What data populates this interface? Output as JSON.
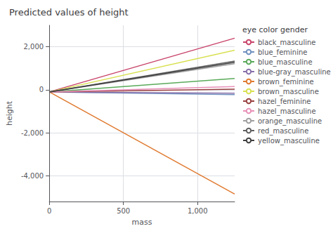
{
  "chart_data": {
    "type": "line",
    "title": "Predicted values of height",
    "xlabel": "mass",
    "ylabel": "height",
    "x": [
      0,
      1250
    ],
    "series": [
      {
        "name": "black_masculine",
        "color": "#c9446a",
        "values": [
          -100,
          2400
        ]
      },
      {
        "name": "blue_feminine",
        "color": "#7090c0",
        "values": [
          -100,
          -225
        ]
      },
      {
        "name": "blue_masculine",
        "color": "#5aaa5a",
        "values": [
          -100,
          525
        ]
      },
      {
        "name": "blue-gray_masculine",
        "color": "#8870aa",
        "values": [
          -100,
          -162.5
        ]
      },
      {
        "name": "brown_feminine",
        "color": "#e07a30",
        "values": [
          -100,
          -4850
        ]
      },
      {
        "name": "brown_masculine",
        "color": "#d8e050",
        "values": [
          -100,
          1837.5
        ]
      },
      {
        "name": "hazel_feminine",
        "color": "#994040",
        "values": [
          -100,
          25
        ]
      },
      {
        "name": "hazel_masculine",
        "color": "#e890b8",
        "values": [
          -100,
          150
        ]
      },
      {
        "name": "orange_masculine",
        "color": "#a0a0a0",
        "values": [
          -100,
          1212.5
        ]
      },
      {
        "name": "red_masculine",
        "color": "#606060",
        "values": [
          -100,
          1337.5
        ]
      },
      {
        "name": "yellow_masculine",
        "color": "#404040",
        "values": [
          -100,
          1275
        ]
      }
    ],
    "legend_title": "eye color gender",
    "legend": "right",
    "xlim": [
      0,
      1250
    ],
    "xticks": [
      0,
      500,
      1000
    ],
    "ylim": [
      -5200,
      3000
    ],
    "yticks": [
      -4000,
      -2000,
      0,
      2000
    ],
    "grid": true
  }
}
